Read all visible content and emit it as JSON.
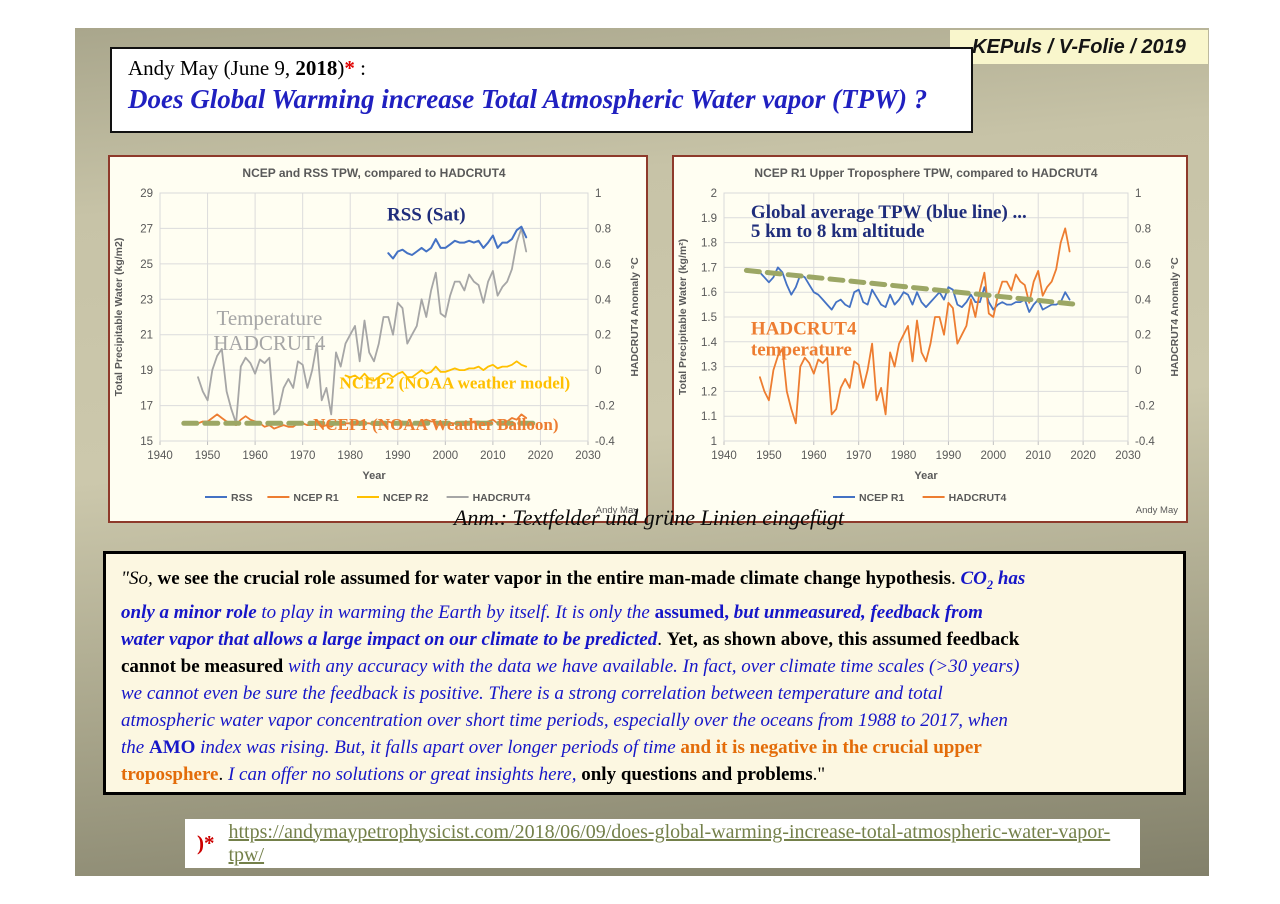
{
  "badge": {
    "label": "KEPuls / V-Folie / 2019"
  },
  "title": {
    "line1_pre": "Andy May (June 9, ",
    "line1_year": "2018",
    "line1_close": ")",
    "line1_star": "*",
    "line1_colon": " :",
    "line2": "Does Global Warming increase Total Atmospheric Water vapor (TPW) ?"
  },
  "caption": "Anm.: Textfelder und grüne Linien eingefügt",
  "quote": {
    "colors": {
      "k": "#000000",
      "b": "#1616c8",
      "o": "#e36c09"
    },
    "segments": [
      {
        "t": "\"So,",
        "i": 1,
        "c": "k"
      },
      {
        "t": " we see the crucial role assumed for water vapor in the entire man-made climate change hypothesis",
        "b": 1,
        "c": "k"
      },
      {
        "t": ". ",
        "c": "k"
      },
      {
        "t": "CO",
        "b": 1,
        "i": 1,
        "c": "b"
      },
      {
        "t": "2",
        "b": 1,
        "i": 1,
        "c": "b",
        "sub": 1
      },
      {
        "t": " has",
        "b": 1,
        "i": 1,
        "c": "b"
      },
      {
        "br": 1
      },
      {
        "t": "only a minor role",
        "b": 1,
        "i": 1,
        "c": "b"
      },
      {
        "t": " to play in warming the Earth by itself. It is only the ",
        "i": 1,
        "c": "b"
      },
      {
        "t": "assumed,",
        "b": 1,
        "c": "b"
      },
      {
        "t": " but unmeasured, feedback from",
        "b": 1,
        "i": 1,
        "c": "b"
      },
      {
        "br": 1
      },
      {
        "t": "water vapor that allows a large impact on our climate to be predicted",
        "b": 1,
        "i": 1,
        "c": "b"
      },
      {
        "t": ". ",
        "c": "k"
      },
      {
        "t": "Yet, as shown above, this assumed feedback",
        "b": 1,
        "c": "k"
      },
      {
        "br": 1
      },
      {
        "t": "cannot be measured ",
        "b": 1,
        "c": "k"
      },
      {
        "t": "with any accuracy with the data we have available. In fact, over climate time scales (>30 years)",
        "i": 1,
        "c": "b"
      },
      {
        "br": 1
      },
      {
        "t": "we cannot even be sure the feedback is positive. There is a strong correlation between temperature and total",
        "i": 1,
        "c": "b"
      },
      {
        "br": 1
      },
      {
        "t": "atmospheric water vapor concentration over short time periods, especially over the oceans from 1988 to 2017, when",
        "i": 1,
        "c": "b"
      },
      {
        "br": 1
      },
      {
        "t": "the ",
        "i": 1,
        "c": "b"
      },
      {
        "t": "AMO",
        "b": 1,
        "c": "b"
      },
      {
        "t": " index was rising. But, it falls apart over longer periods of time ",
        "i": 1,
        "c": "b"
      },
      {
        "t": "and it is negative in the crucial upper",
        "b": 1,
        "c": "o"
      },
      {
        "br": 1
      },
      {
        "t": "troposphere",
        "b": 1,
        "c": "o"
      },
      {
        "t": ". ",
        "c": "k"
      },
      {
        "t": "I can offer no solutions or great insights here,",
        "i": 1,
        "c": "b"
      },
      {
        "t": " ",
        "c": "k"
      },
      {
        "t": "only questions and problems",
        "b": 1,
        "c": "k"
      },
      {
        "t": ".\"",
        "c": "k"
      }
    ]
  },
  "footer": {
    "marker": ")*",
    "link": "https://andymaypetrophysicist.com/2018/06/09/does-global-warming-increase-total-atmospheric-water-vapor-tpw/"
  },
  "chart_data": [
    {
      "type": "line",
      "title": "NCEP and RSS TPW, compared to HADCRUT4",
      "xlabel": "Year",
      "ylabel_left": "Total Precipitable Water (kg/m2)",
      "ylabel_right": "HADCRUT4 Anomaly °C",
      "xlim": [
        1940,
        2030
      ],
      "xticks": [
        1940,
        1950,
        1960,
        1970,
        1980,
        1990,
        2000,
        2010,
        2020,
        2030
      ],
      "ylim_left": [
        15,
        29
      ],
      "yticks_left": [
        15,
        17,
        19,
        21,
        23,
        25,
        27,
        29
      ],
      "ylim_right": [
        -0.4,
        1
      ],
      "yticks_right": [
        -0.4,
        -0.2,
        0,
        0.2,
        0.4,
        0.6,
        0.8,
        1
      ],
      "grid": true,
      "credit": "Andy May",
      "legend": [
        {
          "label": "RSS",
          "color": "#4472C4"
        },
        {
          "label": "NCEP R1",
          "color": "#ED7D31"
        },
        {
          "label": "NCEP R2",
          "color": "#FFC000"
        },
        {
          "label": "HADCRUT4",
          "color": "#A6A6A6"
        }
      ],
      "series": [
        {
          "name": "HADCRUT4",
          "axis": "right",
          "color": "#A6A6A6",
          "width": 1.8,
          "x_start": 1948,
          "y": [
            -0.04,
            -0.12,
            -0.17,
            0,
            0.08,
            0.12,
            -0.12,
            -0.22,
            -0.3,
            0.02,
            0.07,
            0.04,
            -0.02,
            0.06,
            0.04,
            0.07,
            -0.25,
            -0.22,
            -0.1,
            -0.05,
            -0.1,
            0.05,
            0.03,
            -0.1,
            0,
            0.15,
            -0.17,
            -0.1,
            -0.25,
            0.1,
            0.02,
            0.15,
            0.2,
            0.25,
            0.05,
            0.28,
            0.1,
            0.05,
            0.15,
            0.3,
            0.3,
            0.2,
            0.38,
            0.35,
            0.15,
            0.2,
            0.25,
            0.4,
            0.3,
            0.45,
            0.55,
            0.32,
            0.3,
            0.42,
            0.5,
            0.5,
            0.45,
            0.54,
            0.5,
            0.48,
            0.38,
            0.5,
            0.56,
            0.42,
            0.47,
            0.5,
            0.57,
            0.72,
            0.8,
            0.67
          ]
        },
        {
          "name": "NCEP R2",
          "axis": "left",
          "color": "#FFC000",
          "width": 1.8,
          "x_start": 1979,
          "y": [
            18.7,
            18.6,
            18.7,
            18.5,
            18.8,
            18.5,
            18.4,
            18.6,
            18.8,
            18.8,
            18.6,
            18.8,
            18.9,
            18.6,
            18.6,
            18.8,
            19.0,
            18.8,
            18.9,
            19.2,
            18.9,
            18.9,
            19.0,
            19.1,
            19.0,
            19.0,
            19.1,
            19.1,
            19.2,
            19.0,
            19.2,
            19.3,
            19.1,
            19.2,
            19.2,
            19.3,
            19.5,
            19.3,
            19.2
          ]
        },
        {
          "name": "NCEP R1",
          "axis": "left",
          "color": "#ED7D31",
          "width": 1.8,
          "x_start": 1948,
          "y": [
            16.0,
            16.1,
            16.1,
            16.3,
            16.5,
            16.3,
            16.1,
            16.0,
            15.9,
            16.2,
            16.4,
            16.2,
            16.1,
            16.0,
            15.8,
            15.9,
            15.7,
            15.8,
            15.9,
            15.8,
            15.8,
            16.0,
            16.0,
            15.9,
            15.9,
            16.0,
            15.8,
            15.9,
            15.8,
            16.0,
            16.0,
            16.0,
            16.0,
            16.1,
            15.9,
            16.0,
            16.0,
            15.9,
            15.9,
            16.0,
            16.1,
            16.0,
            16.0,
            16.1,
            15.9,
            15.9,
            16.0,
            16.1,
            16.2,
            16.1,
            16.1,
            16.0,
            15.9,
            16.0,
            16.0,
            15.9,
            15.9,
            16.0,
            16.1,
            16.1,
            16.0,
            16.1,
            16.2,
            16.0,
            16.1,
            16.1,
            16.3,
            16.2,
            16.5,
            16.3
          ]
        },
        {
          "name": "RSS",
          "axis": "left",
          "color": "#4472C4",
          "width": 2,
          "x_start": 1988,
          "y": [
            25.6,
            25.3,
            25.7,
            25.8,
            25.6,
            25.5,
            25.7,
            25.9,
            25.7,
            25.9,
            26.4,
            25.9,
            25.9,
            26.1,
            26.3,
            26.2,
            26.2,
            26.3,
            26.2,
            26.3,
            25.9,
            26.2,
            26.6,
            25.9,
            26.2,
            26.2,
            26.4,
            26.9,
            27.1,
            26.5
          ]
        },
        {
          "name": "inserted green trend",
          "axis": "left",
          "color": "#9CA765",
          "width": 5,
          "dash": "13 8",
          "x": [
            1945,
            2019
          ],
          "y": [
            16,
            16
          ]
        }
      ],
      "annotations": [
        {
          "text": "RSS (Sat)",
          "x": 1996,
          "y": 27.45,
          "color": "#1F2D7B",
          "size": 19,
          "bold": 1,
          "anchor": "middle"
        },
        {
          "text": "Temperature",
          "x": 1963,
          "y": 21.55,
          "color": "#A6A6A6",
          "size": 21,
          "anchor": "middle"
        },
        {
          "text": "HADCRUT4",
          "x": 1963,
          "y": 20.15,
          "color": "#A6A6A6",
          "size": 21,
          "anchor": "middle"
        },
        {
          "text": "NCEP2 (NOAA weather model)",
          "x": 2002,
          "y": 17.95,
          "color": "#FFC000",
          "size": 17,
          "bold": 1,
          "anchor": "middle"
        },
        {
          "text": "NCEP1 (NOAA Weather Balloon)",
          "x": 1998,
          "y": 15.62,
          "color": "#ED7D31",
          "size": 17,
          "bold": 1,
          "anchor": "middle"
        }
      ]
    },
    {
      "type": "line",
      "title": "NCEP R1 Upper Troposphere TPW, compared to HADCRUT4",
      "xlabel": "Year",
      "ylabel_left": "Total Precipitable Water (kg/m²)",
      "ylabel_right": "HADCRUT4 Anomaly °C",
      "xlim": [
        1940,
        2030
      ],
      "xticks": [
        1940,
        1950,
        1960,
        1970,
        1980,
        1990,
        2000,
        2010,
        2020,
        2030
      ],
      "ylim_left": [
        1,
        2
      ],
      "yticks_left": [
        1,
        1.1,
        1.2,
        1.3,
        1.4,
        1.5,
        1.6,
        1.7,
        1.8,
        1.9,
        2
      ],
      "ylim_right": [
        -0.4,
        1
      ],
      "yticks_right": [
        -0.4,
        -0.2,
        0,
        0.2,
        0.4,
        0.6,
        0.8,
        1
      ],
      "grid": true,
      "credit": "Andy May",
      "legend": [
        {
          "label": "NCEP R1",
          "color": "#4472C4"
        },
        {
          "label": "HADCRUT4",
          "color": "#ED7D31"
        }
      ],
      "series": [
        {
          "name": "NCEP R1",
          "axis": "left",
          "color": "#4472C4",
          "width": 1.8,
          "x_start": 1948,
          "y": [
            1.68,
            1.66,
            1.64,
            1.66,
            1.7,
            1.68,
            1.63,
            1.59,
            1.62,
            1.67,
            1.66,
            1.63,
            1.6,
            1.59,
            1.57,
            1.55,
            1.53,
            1.56,
            1.57,
            1.55,
            1.54,
            1.6,
            1.61,
            1.56,
            1.55,
            1.61,
            1.58,
            1.55,
            1.54,
            1.59,
            1.55,
            1.57,
            1.6,
            1.59,
            1.55,
            1.6,
            1.56,
            1.54,
            1.56,
            1.58,
            1.6,
            1.57,
            1.62,
            1.61,
            1.55,
            1.54,
            1.56,
            1.59,
            1.56,
            1.56,
            1.62,
            1.56,
            1.53,
            1.55,
            1.56,
            1.55,
            1.55,
            1.56,
            1.56,
            1.57,
            1.52,
            1.55,
            1.57,
            1.53,
            1.54,
            1.55,
            1.55,
            1.56,
            1.6,
            1.57
          ]
        },
        {
          "name": "HADCRUT4",
          "axis": "right",
          "color": "#ED7D31",
          "width": 1.8,
          "x_start": 1948,
          "y": [
            -0.04,
            -0.12,
            -0.17,
            0,
            0.08,
            0.12,
            -0.12,
            -0.22,
            -0.3,
            0.02,
            0.07,
            0.04,
            -0.02,
            0.06,
            0.04,
            0.07,
            -0.25,
            -0.22,
            -0.1,
            -0.05,
            -0.1,
            0.05,
            0.03,
            -0.1,
            0,
            0.15,
            -0.17,
            -0.1,
            -0.25,
            0.1,
            0.02,
            0.15,
            0.2,
            0.25,
            0.05,
            0.28,
            0.1,
            0.05,
            0.15,
            0.3,
            0.3,
            0.2,
            0.38,
            0.35,
            0.15,
            0.2,
            0.25,
            0.4,
            0.3,
            0.45,
            0.55,
            0.32,
            0.3,
            0.42,
            0.5,
            0.5,
            0.45,
            0.54,
            0.5,
            0.48,
            0.38,
            0.5,
            0.56,
            0.42,
            0.47,
            0.5,
            0.57,
            0.72,
            0.8,
            0.67
          ]
        },
        {
          "name": "inserted green trend",
          "axis": "left",
          "color": "#9CA765",
          "width": 5,
          "dash": "13 8",
          "x": [
            1945,
            2018
          ],
          "y": [
            1.688,
            1.552
          ]
        }
      ],
      "annotations": [
        {
          "text": "Global average TPW (blue line) ...",
          "x": 1946,
          "y": 1.9,
          "color": "#1F2D7B",
          "size": 19,
          "bold": 1,
          "anchor": "start"
        },
        {
          "text": "5 km to 8 km altitude",
          "x": 1946,
          "y": 1.823,
          "color": "#1F2D7B",
          "size": 19,
          "bold": 1,
          "anchor": "start"
        },
        {
          "text": "HADCRUT4",
          "x": 1946,
          "y": 1.43,
          "color": "#ED7D31",
          "size": 19,
          "bold": 1,
          "anchor": "start"
        },
        {
          "text": "temperature",
          "x": 1946,
          "y": 1.345,
          "color": "#ED7D31",
          "size": 19,
          "bold": 1,
          "anchor": "start"
        }
      ]
    }
  ]
}
